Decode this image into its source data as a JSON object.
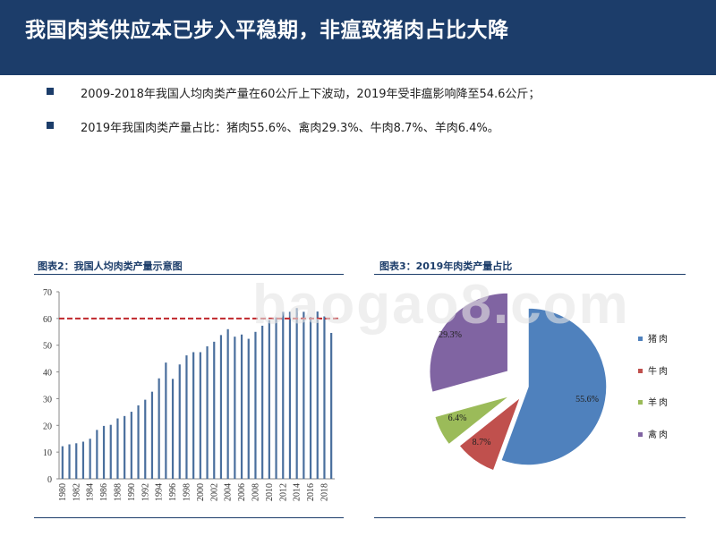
{
  "header": {
    "title": "我国肉类供应本已步入平稳期，非瘟致猪肉占比大降"
  },
  "bullets": [
    "2009-2018年我国人均肉类产量在60公斤上下波动，2019年受非瘟影响降至54.6公斤；",
    "2019年我国肉类产量占比：猪肉55.6%、禽肉29.3%、牛肉8.7%、羊肉6.4%。"
  ],
  "watermark": "baogao8.com",
  "colors": {
    "header_bg": "#1c3d6a",
    "bar": "#4a6f9d",
    "ref_line": "#c0282d",
    "pork": "#4f81bd",
    "beef": "#c0504d",
    "mutton": "#9bbb59",
    "poultry": "#8064a2"
  },
  "chart_data": [
    {
      "type": "bar",
      "title": "图表2：我国人均肉类产量示意图",
      "x": [
        1980,
        1981,
        1982,
        1983,
        1984,
        1985,
        1986,
        1987,
        1988,
        1989,
        1990,
        1991,
        1992,
        1993,
        1994,
        1995,
        1996,
        1997,
        1998,
        1999,
        2000,
        2001,
        2002,
        2003,
        2004,
        2005,
        2006,
        2007,
        2008,
        2009,
        2010,
        2011,
        2012,
        2013,
        2014,
        2015,
        2016,
        2017,
        2018,
        2019
      ],
      "xticks": [
        "1980",
        "1982",
        "1984",
        "1986",
        "1988",
        "1990",
        "1992",
        "1994",
        "1996",
        "1998",
        "2000",
        "2002",
        "2004",
        "2006",
        "2008",
        "2010",
        "2012",
        "2014",
        "2016",
        "2018"
      ],
      "values": [
        12.2,
        12.9,
        13.3,
        13.9,
        15.0,
        18.3,
        19.8,
        20.2,
        22.6,
        23.5,
        25.1,
        27.5,
        29.6,
        32.6,
        37.6,
        43.5,
        37.4,
        42.8,
        46.2,
        47.4,
        47.4,
        49.6,
        51.3,
        53.8,
        56.0,
        53.2,
        54.0,
        52.4,
        55.0,
        57.3,
        59.4,
        60.4,
        62.5,
        62.5,
        63.9,
        62.5,
        60.6,
        62.6,
        60.8,
        54.6
      ],
      "ylim": [
        0,
        70
      ],
      "yticks": [
        0,
        10,
        20,
        30,
        40,
        50,
        60,
        70
      ],
      "reference_line": 60
    },
    {
      "type": "pie",
      "title": "图表3：2019年肉类产量占比",
      "slices": [
        {
          "label": "猪肉",
          "value": 55.6,
          "display": "55.6%",
          "color": "#4f81bd"
        },
        {
          "label": "牛肉",
          "value": 8.7,
          "display": "8.7%",
          "color": "#c0504d"
        },
        {
          "label": "羊肉",
          "value": 6.4,
          "display": "6.4%",
          "color": "#9bbb59"
        },
        {
          "label": "禽肉",
          "value": 29.3,
          "display": "29.3%",
          "color": "#8064a2"
        }
      ],
      "legend": [
        "猪肉",
        "牛肉",
        "羊肉",
        "禽肉"
      ]
    }
  ]
}
